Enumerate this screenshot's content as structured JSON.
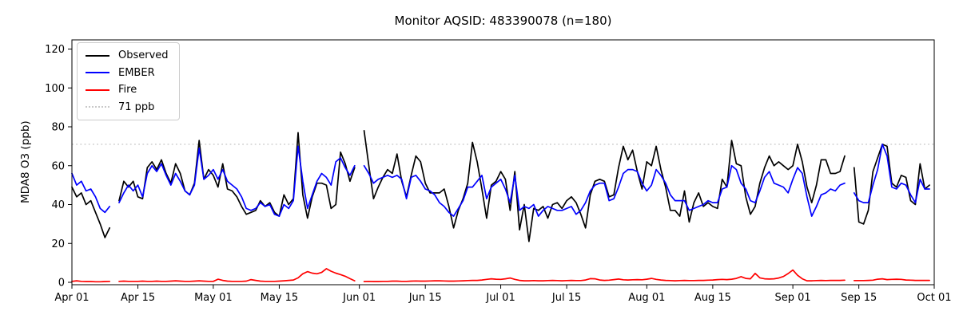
{
  "title": "Monitor AQSID: 483390078 (n=180)",
  "axes": {
    "ylabel": "MDA8 O3 (ppb)",
    "yticks": [
      0,
      20,
      40,
      60,
      80,
      100,
      120
    ],
    "xticks": [
      {
        "label": "Apr 01",
        "day": 0
      },
      {
        "label": "Apr 15",
        "day": 14
      },
      {
        "label": "May 01",
        "day": 30
      },
      {
        "label": "May 15",
        "day": 44
      },
      {
        "label": "Jun 01",
        "day": 61
      },
      {
        "label": "Jun 15",
        "day": 75
      },
      {
        "label": "Jul 01",
        "day": 91
      },
      {
        "label": "Jul 15",
        "day": 105
      },
      {
        "label": "Aug 01",
        "day": 122
      },
      {
        "label": "Aug 15",
        "day": 136
      },
      {
        "label": "Sep 01",
        "day": 153
      },
      {
        "label": "Sep 15",
        "day": 167
      },
      {
        "label": "Oct 01",
        "day": 183
      }
    ]
  },
  "legend": {
    "items": [
      {
        "id": "observed",
        "label": "Observed",
        "color": "#000000",
        "style": "solid"
      },
      {
        "id": "ember",
        "label": "EMBER",
        "color": "#0000ff",
        "style": "solid"
      },
      {
        "id": "fire",
        "label": "Fire",
        "color": "#ff0000",
        "style": "solid"
      },
      {
        "id": "threshold",
        "label": "71 ppb",
        "color": "#c9c9c9",
        "style": "dotted"
      }
    ]
  },
  "chart_data": {
    "type": "line",
    "title": "Monitor AQSID: 483390078 (n=180)",
    "ylabel": "MDA8 O3 (ppb)",
    "x_unit": "day",
    "x_start_date": "Apr 01",
    "x_end_date": "Sep 30",
    "xlim_labels": [
      "Apr 01",
      "Oct 01"
    ],
    "ylim": [
      -2,
      125
    ],
    "n_valid_days": 180,
    "missing_dates": [
      "Apr 10",
      "Jun 01",
      "Sep 13"
    ],
    "threshold": {
      "value": 71,
      "label": "71 ppb",
      "color": "#c9c9c9",
      "style": "dotted"
    },
    "series": [
      {
        "name": "Observed",
        "color": "#000000",
        "values": [
          49,
          44,
          46,
          40,
          42,
          36,
          30,
          23,
          28,
          null,
          42,
          52,
          49,
          52,
          44,
          43,
          59,
          62,
          58,
          63,
          56,
          51,
          61,
          56,
          47,
          45,
          51,
          73,
          53,
          58,
          55,
          49,
          61,
          48,
          47,
          44,
          39,
          35,
          36,
          37,
          42,
          39,
          41,
          36,
          34,
          45,
          40,
          43,
          77,
          45,
          33,
          44,
          51,
          51,
          50,
          38,
          40,
          67,
          61,
          52,
          59,
          null,
          78,
          60,
          43,
          49,
          54,
          58,
          56,
          66,
          52,
          44,
          55,
          65,
          62,
          51,
          46,
          46,
          46,
          48,
          39,
          28,
          37,
          43,
          51,
          72,
          62,
          48,
          33,
          50,
          52,
          57,
          53,
          37,
          57,
          27,
          40,
          21,
          38,
          37,
          39,
          33,
          40,
          41,
          38,
          42,
          44,
          41,
          35,
          28,
          45,
          52,
          53,
          52,
          44,
          45,
          59,
          70,
          63,
          68,
          57,
          48,
          62,
          60,
          70,
          58,
          49,
          37,
          37,
          34,
          47,
          31,
          41,
          46,
          39,
          41,
          39,
          38,
          53,
          49,
          73,
          61,
          60,
          44,
          35,
          39,
          51,
          59,
          65,
          60,
          62,
          60,
          58,
          60,
          71,
          62,
          49,
          41,
          50,
          63,
          63,
          56,
          56,
          57,
          65,
          null,
          59,
          31,
          30,
          37,
          57,
          64,
          71,
          70,
          51,
          49,
          55,
          54,
          42,
          40,
          61,
          48,
          50
        ]
      },
      {
        "name": "EMBER",
        "color": "#0000ff",
        "values": [
          56,
          50,
          52,
          47,
          48,
          44,
          38,
          36,
          39,
          null,
          41,
          46,
          50,
          47,
          50,
          44,
          56,
          60,
          57,
          61,
          55,
          50,
          56,
          52,
          47,
          45,
          50,
          69,
          53,
          55,
          58,
          53,
          58,
          52,
          50,
          48,
          44,
          38,
          37,
          38,
          41,
          39,
          40,
          35,
          34,
          40,
          38,
          42,
          70,
          52,
          38,
          45,
          52,
          56,
          54,
          50,
          62,
          64,
          59,
          55,
          60,
          null,
          60,
          56,
          51,
          53,
          54,
          55,
          54,
          55,
          53,
          43,
          54,
          55,
          52,
          48,
          47,
          45,
          41,
          39,
          36,
          34,
          38,
          42,
          49,
          49,
          52,
          55,
          43,
          49,
          51,
          53,
          48,
          41,
          55,
          37,
          39,
          38,
          40,
          34,
          37,
          39,
          38,
          37,
          37,
          38,
          39,
          35,
          37,
          41,
          47,
          50,
          51,
          51,
          42,
          43,
          49,
          56,
          58,
          58,
          57,
          51,
          47,
          50,
          58,
          55,
          51,
          45,
          42,
          42,
          42,
          37,
          38,
          39,
          40,
          42,
          41,
          41,
          48,
          49,
          60,
          58,
          51,
          48,
          42,
          41,
          47,
          54,
          57,
          51,
          50,
          49,
          46,
          53,
          59,
          56,
          44,
          34,
          39,
          45,
          46,
          48,
          47,
          50,
          51,
          null,
          46,
          42,
          41,
          41,
          50,
          58,
          71,
          65,
          49,
          48,
          51,
          50,
          45,
          41,
          53,
          48,
          48
        ]
      },
      {
        "name": "Fire",
        "color": "#ff0000",
        "values": [
          0.5,
          0.8,
          0.5,
          0.4,
          0.4,
          0.3,
          0.3,
          0.4,
          0.5,
          null,
          0.5,
          0.6,
          0.5,
          0.5,
          0.5,
          0.6,
          0.5,
          0.5,
          0.6,
          0.5,
          0.5,
          0.6,
          0.8,
          0.6,
          0.5,
          0.5,
          0.6,
          0.8,
          0.6,
          0.5,
          0.5,
          1.6,
          1.0,
          0.6,
          0.5,
          0.5,
          0.5,
          0.6,
          1.4,
          1.0,
          0.6,
          0.5,
          0.5,
          0.5,
          0.6,
          0.8,
          1.0,
          1.2,
          2.3,
          4.4,
          5.5,
          4.7,
          4.4,
          5.1,
          7.0,
          5.7,
          4.7,
          4.0,
          3.1,
          1.9,
          0.8,
          null,
          0.4,
          0.5,
          0.4,
          0.4,
          0.5,
          0.5,
          0.6,
          0.6,
          0.5,
          0.5,
          0.6,
          0.7,
          0.6,
          0.6,
          0.7,
          0.8,
          0.8,
          0.7,
          0.6,
          0.6,
          0.7,
          0.8,
          0.9,
          1.0,
          1.0,
          1.2,
          1.5,
          1.8,
          1.6,
          1.5,
          1.8,
          2.2,
          1.5,
          1.0,
          0.8,
          0.8,
          0.9,
          0.8,
          0.8,
          0.9,
          1.0,
          0.9,
          0.8,
          0.9,
          1.0,
          0.9,
          0.9,
          1.2,
          1.9,
          1.8,
          1.2,
          1.0,
          1.1,
          1.4,
          1.7,
          1.3,
          1.2,
          1.3,
          1.4,
          1.3,
          1.6,
          2.0,
          1.5,
          1.2,
          1.0,
          0.9,
          0.8,
          0.9,
          1.0,
          0.9,
          0.9,
          1.0,
          1.0,
          1.1,
          1.2,
          1.4,
          1.5,
          1.4,
          1.6,
          2.0,
          2.9,
          2.0,
          1.8,
          4.6,
          2.3,
          1.8,
          1.7,
          1.8,
          2.2,
          3.0,
          4.5,
          6.3,
          3.6,
          1.8,
          0.8,
          0.8,
          0.9,
          1.0,
          0.9,
          1.0,
          1.0,
          1.0,
          1.1,
          null,
          0.9,
          0.9,
          0.9,
          1.0,
          1.1,
          1.6,
          1.8,
          1.4,
          1.5,
          1.6,
          1.5,
          1.2,
          1.1,
          1.0,
          1.0,
          1.0,
          1.0
        ]
      }
    ],
    "legend_position": "upper left",
    "grid": false
  }
}
